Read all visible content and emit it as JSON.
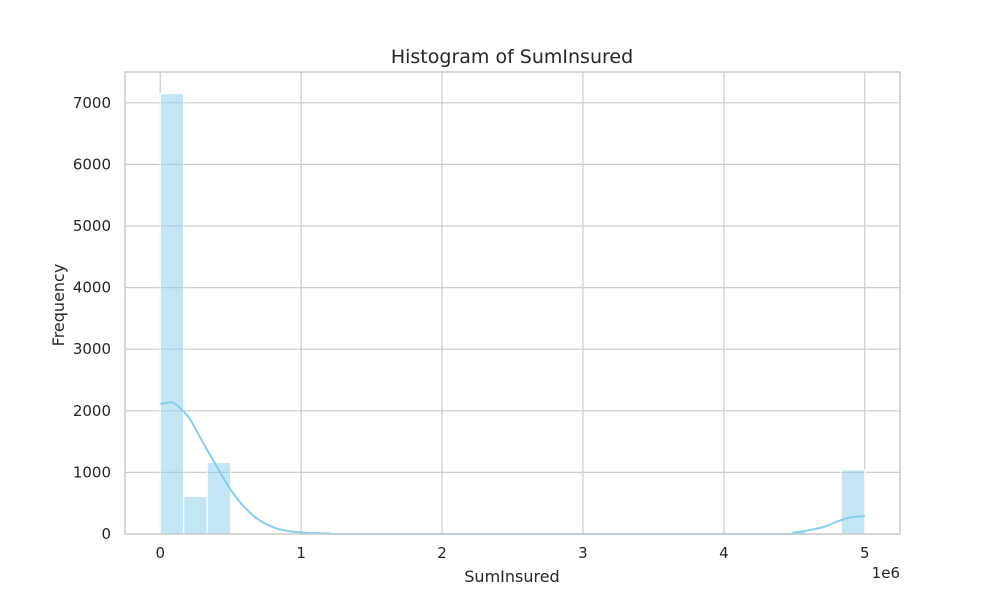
{
  "chart_data": {
    "type": "bar",
    "subtype": "histogram-with-kde",
    "title": "Histogram of SumInsured",
    "xlabel": "SumInsured",
    "ylabel": "Frequency",
    "x_offset_label": "1e6",
    "x_scale": 1000000,
    "xlim": [
      -250000,
      5250000
    ],
    "ylim": [
      0,
      7500
    ],
    "xticks": [
      0,
      1,
      2,
      3,
      4,
      5
    ],
    "yticks": [
      0,
      1000,
      2000,
      3000,
      4000,
      5000,
      6000,
      7000
    ],
    "grid": true,
    "color": "#87ceeb",
    "bar_opacity": 0.5,
    "bins": [
      {
        "x0": 0,
        "x1": 166667,
        "count": 7150
      },
      {
        "x0": 166667,
        "x1": 333333,
        "count": 610
      },
      {
        "x0": 333333,
        "x1": 500000,
        "count": 1160
      },
      {
        "x0": 4833333,
        "x1": 5000000,
        "count": 1040
      }
    ],
    "kde": {
      "x": [
        0,
        50000,
        100000,
        200000,
        300000,
        400000,
        500000,
        600000,
        700000,
        800000,
        900000,
        1000000,
        1200000,
        1400000,
        4300000,
        4500000,
        4700000,
        4800000,
        4900000,
        5000000
      ],
      "y": [
        2110,
        2130,
        2120,
        1900,
        1500,
        1100,
        720,
        430,
        230,
        110,
        50,
        25,
        8,
        0,
        0,
        25,
        110,
        200,
        270,
        290
      ]
    }
  }
}
